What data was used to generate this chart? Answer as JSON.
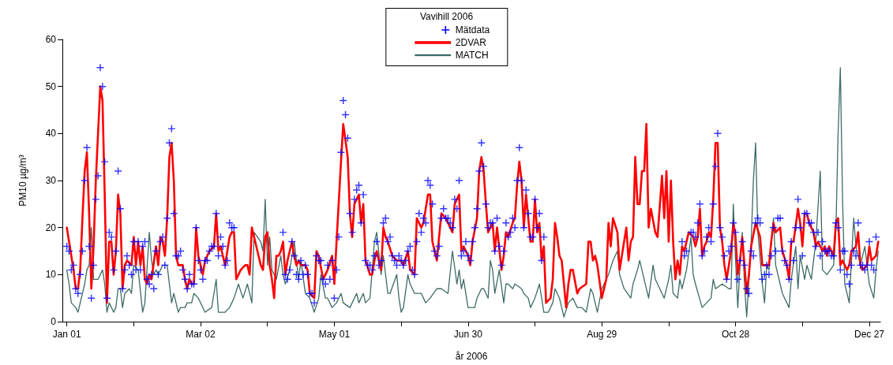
{
  "chart_data": {
    "type": "line",
    "legend_title": "Vavihill 2006",
    "xlabel": "år 2006",
    "ylabel": "PM10 µg/m³",
    "xlim": [
      "2005-12-30",
      "2007-01-01"
    ],
    "xticks": [
      {
        "value": "2006-01-01",
        "label": "Jan 01"
      },
      {
        "value": "2006-01-31",
        "label": null
      },
      {
        "value": "2006-03-02",
        "label": "Mar 02"
      },
      {
        "value": "2006-04-01",
        "label": null
      },
      {
        "value": "2006-05-01",
        "label": "May 01"
      },
      {
        "value": "2006-05-31",
        "label": null
      },
      {
        "value": "2006-06-30",
        "label": "Jun 30"
      },
      {
        "value": "2006-07-30",
        "label": null
      },
      {
        "value": "2006-08-29",
        "label": "Aug 29"
      },
      {
        "value": "2006-09-28",
        "label": null
      },
      {
        "value": "2006-10-28",
        "label": "Oct 28"
      },
      {
        "value": "2006-11-27",
        "label": null
      },
      {
        "value": "2006-12-27",
        "label": "Dec 27"
      }
    ],
    "ylim": [
      0,
      60
    ],
    "yticks": [
      0,
      10,
      20,
      30,
      40,
      50,
      60
    ],
    "grid": false,
    "legend": "top",
    "series": [
      {
        "name": "Mätdata",
        "type": "scatter",
        "marker": "cross",
        "color": "#0000ff",
        "x": [
          "2006-01-01",
          "2006-01-02",
          "2006-01-03",
          "2006-01-04",
          "2006-01-05",
          "2006-01-06",
          "2006-01-07",
          "2006-01-08",
          "2006-01-09",
          "2006-01-10",
          "2006-01-11",
          "2006-01-12",
          "2006-01-13",
          "2006-01-14",
          "2006-01-15",
          "2006-01-16",
          "2006-01-17",
          "2006-01-18",
          "2006-01-19",
          "2006-01-20",
          "2006-01-21",
          "2006-01-22",
          "2006-01-23",
          "2006-01-24",
          "2006-01-25",
          "2006-01-26",
          "2006-01-27",
          "2006-01-28",
          "2006-01-29",
          "2006-01-30",
          "2006-01-31",
          "2006-02-01",
          "2006-02-02",
          "2006-02-03",
          "2006-02-04",
          "2006-02-05",
          "2006-02-06",
          "2006-02-07",
          "2006-02-08",
          "2006-02-09",
          "2006-02-10",
          "2006-02-11",
          "2006-02-12",
          "2006-02-13",
          "2006-02-14",
          "2006-02-15",
          "2006-02-16",
          "2006-02-17",
          "2006-02-18",
          "2006-02-19",
          "2006-02-20",
          "2006-02-21",
          "2006-02-22",
          "2006-02-23",
          "2006-02-24",
          "2006-02-25",
          "2006-02-26",
          "2006-02-27",
          "2006-02-28",
          "2006-03-01",
          "2006-03-02",
          "2006-03-03",
          "2006-03-04",
          "2006-03-05",
          "2006-03-06",
          "2006-03-07",
          "2006-03-08",
          "2006-03-09",
          "2006-03-10",
          "2006-03-11",
          "2006-03-12",
          "2006-03-13",
          "2006-03-14",
          "2006-03-15",
          "2006-03-16",
          "2006-03-17",
          "2006-04-08",
          "2006-04-09",
          "2006-04-10",
          "2006-04-11",
          "2006-04-12",
          "2006-04-13",
          "2006-04-14",
          "2006-04-15",
          "2006-04-16",
          "2006-04-17",
          "2006-04-18",
          "2006-04-19",
          "2006-04-20",
          "2006-04-21",
          "2006-04-22",
          "2006-04-23",
          "2006-04-24",
          "2006-04-25",
          "2006-04-26",
          "2006-04-27",
          "2006-04-28",
          "2006-04-29",
          "2006-04-30",
          "2006-05-01",
          "2006-05-02",
          "2006-05-03",
          "2006-05-04",
          "2006-05-05",
          "2006-05-06",
          "2006-05-07",
          "2006-05-08",
          "2006-05-09",
          "2006-05-10",
          "2006-05-11",
          "2006-05-12",
          "2006-05-13",
          "2006-05-14",
          "2006-05-15",
          "2006-05-16",
          "2006-05-17",
          "2006-05-18",
          "2006-05-19",
          "2006-05-20",
          "2006-05-21",
          "2006-05-22",
          "2006-05-23",
          "2006-05-24",
          "2006-05-25",
          "2006-05-26",
          "2006-05-27",
          "2006-05-28",
          "2006-05-29",
          "2006-05-30",
          "2006-05-31",
          "2006-06-01",
          "2006-06-02",
          "2006-06-03",
          "2006-06-04",
          "2006-06-05",
          "2006-06-06",
          "2006-06-07",
          "2006-06-08",
          "2006-06-09",
          "2006-06-10",
          "2006-06-11",
          "2006-06-12",
          "2006-06-13",
          "2006-06-14",
          "2006-06-15",
          "2006-06-16",
          "2006-06-17",
          "2006-06-18",
          "2006-06-19",
          "2006-06-20",
          "2006-06-21",
          "2006-06-22",
          "2006-06-23",
          "2006-06-24",
          "2006-06-25",
          "2006-06-26",
          "2006-06-27",
          "2006-06-28",
          "2006-06-29",
          "2006-06-30",
          "2006-07-01",
          "2006-07-02",
          "2006-07-03",
          "2006-07-04",
          "2006-07-05",
          "2006-07-06",
          "2006-07-07",
          "2006-07-08",
          "2006-07-09",
          "2006-07-10",
          "2006-07-11",
          "2006-07-12",
          "2006-07-13",
          "2006-07-14",
          "2006-07-15",
          "2006-07-16",
          "2006-07-17",
          "2006-07-18",
          "2006-07-19",
          "2006-07-20",
          "2006-07-21",
          "2006-07-22",
          "2006-07-23",
          "2006-07-24",
          "2006-07-25",
          "2006-07-26",
          "2006-07-27",
          "2006-07-28",
          "2006-07-29",
          "2006-07-30",
          "2006-07-31",
          "2006-08-01",
          "2006-08-02",
          "2006-08-03",
          "2006-10-04",
          "2006-10-05",
          "2006-10-06",
          "2006-10-08",
          "2006-10-09",
          "2006-10-10",
          "2006-10-11",
          "2006-10-12",
          "2006-10-13",
          "2006-10-14",
          "2006-10-15",
          "2006-10-16",
          "2006-10-17",
          "2006-10-18",
          "2006-10-19",
          "2006-10-20",
          "2006-10-21",
          "2006-10-22",
          "2006-10-23",
          "2006-10-24",
          "2006-10-25",
          "2006-10-26",
          "2006-10-27",
          "2006-10-28",
          "2006-10-29",
          "2006-10-30",
          "2006-10-31",
          "2006-11-01",
          "2006-11-02",
          "2006-11-03",
          "2006-11-04",
          "2006-11-05",
          "2006-11-06",
          "2006-11-07",
          "2006-11-08",
          "2006-11-09",
          "2006-11-10",
          "2006-11-11",
          "2006-11-12",
          "2006-11-13",
          "2006-11-14",
          "2006-11-15",
          "2006-11-16",
          "2006-11-17",
          "2006-11-18",
          "2006-11-19",
          "2006-11-20",
          "2006-11-21",
          "2006-11-22",
          "2006-11-23",
          "2006-11-24",
          "2006-11-25",
          "2006-11-26",
          "2006-11-27",
          "2006-11-28",
          "2006-11-29",
          "2006-11-30",
          "2006-12-01",
          "2006-12-02",
          "2006-12-03",
          "2006-12-04",
          "2006-12-05",
          "2006-12-06",
          "2006-12-07",
          "2006-12-08",
          "2006-12-09",
          "2006-12-10",
          "2006-12-11",
          "2006-12-12",
          "2006-12-13",
          "2006-12-14",
          "2006-12-15",
          "2006-12-16",
          "2006-12-17",
          "2006-12-18",
          "2006-12-19",
          "2006-12-20",
          "2006-12-21",
          "2006-12-22",
          "2006-12-23",
          "2006-12-24",
          "2006-12-25",
          "2006-12-26",
          "2006-12-27",
          "2006-12-28",
          "2006-12-29",
          "2006-12-30"
        ],
        "values": [
          16,
          15,
          11,
          12,
          7,
          6,
          10,
          15,
          30,
          37,
          16,
          5,
          12,
          26,
          31,
          54,
          50,
          34,
          5,
          19,
          18,
          11,
          15,
          32,
          24,
          7,
          11,
          14,
          12,
          10,
          17,
          11,
          17,
          11,
          16,
          17,
          9,
          8,
          10,
          7,
          15,
          10,
          17,
          18,
          12,
          22,
          38,
          41,
          23,
          14,
          14,
          15,
          11,
          9,
          7,
          10,
          8,
          8,
          20,
          13,
          11,
          9,
          13,
          13,
          15,
          16,
          16,
          23,
          14,
          18,
          16,
          12,
          13,
          21,
          20,
          20,
          19,
          10,
          9,
          11,
          17,
          14,
          10,
          9,
          13,
          10,
          12,
          10,
          6,
          6,
          4,
          14,
          13,
          13,
          9,
          8,
          12,
          9,
          13,
          5,
          11,
          18,
          36,
          47,
          44,
          39,
          23,
          19,
          26,
          28,
          29,
          21,
          27,
          13,
          12,
          12,
          11,
          14,
          17,
          12,
          13,
          21,
          22,
          17,
          18,
          14,
          13,
          12,
          14,
          13,
          12,
          13,
          15,
          16,
          11,
          10,
          17,
          23,
          19,
          22,
          21,
          30,
          29,
          25,
          15,
          14,
          16,
          22,
          24,
          22,
          22,
          21,
          20,
          26,
          24,
          30,
          14,
          15,
          17,
          14,
          13,
          17,
          20,
          24,
          32,
          38,
          33,
          25,
          20,
          21,
          21,
          15,
          22,
          16,
          12,
          15,
          21,
          18,
          19,
          22,
          20,
          30,
          37,
          30,
          20,
          28,
          23,
          18,
          18,
          26,
          20,
          23,
          13,
          18,
          17,
          14,
          15,
          19,
          19,
          18,
          21,
          25,
          14,
          15,
          18,
          20,
          17,
          25,
          33,
          40,
          20,
          18,
          14,
          9,
          15,
          16,
          21,
          19,
          9,
          13,
          17,
          12,
          7,
          6,
          15,
          14,
          21,
          22,
          21,
          9,
          10,
          12,
          10,
          14,
          20,
          15,
          22,
          22,
          15,
          13,
          12,
          9,
          17,
          13,
          20,
          26,
          20,
          14,
          23,
          23,
          21,
          21,
          19,
          16,
          19,
          14,
          17,
          15,
          15,
          15,
          14,
          14,
          21,
          20,
          11,
          15,
          15,
          10,
          8,
          12,
          15,
          14,
          21,
          12,
          12,
          11,
          12,
          17,
          12,
          11,
          18
        ]
      },
      {
        "name": "2DVAR",
        "marker": "none",
        "line_style": "solid",
        "color": "#ff0000",
        "x": [
          "2006-01-01",
          "2006-01-02",
          "2006-01-04",
          "2006-01-05",
          "2006-01-06",
          "2006-01-07",
          "2006-01-08",
          "2006-01-09",
          "2006-01-10",
          "2006-01-11",
          "2006-01-12",
          "2006-01-13",
          "2006-01-14",
          "2006-01-16",
          "2006-01-17",
          "2006-01-18",
          "2006-01-19",
          "2006-01-20",
          "2006-01-21",
          "2006-01-22",
          "2006-01-23",
          "2006-01-24",
          "2006-01-25",
          "2006-01-26",
          "2006-01-27",
          "2006-01-28",
          "2006-01-30",
          "2006-01-31",
          "2006-02-01",
          "2006-02-02",
          "2006-02-03",
          "2006-02-04",
          "2006-02-05",
          "2006-02-06",
          "2006-02-07",
          "2006-02-08",
          "2006-02-10",
          "2006-02-11",
          "2006-02-12",
          "2006-02-13",
          "2006-02-14",
          "2006-02-15",
          "2006-02-16",
          "2006-02-17",
          "2006-02-18",
          "2006-02-19",
          "2006-02-20",
          "2006-02-22",
          "2006-02-23",
          "2006-02-24",
          "2006-02-25",
          "2006-02-26",
          "2006-02-27",
          "2006-02-28",
          "2006-03-01",
          "2006-03-03",
          "2006-03-04",
          "2006-03-06",
          "2006-03-08",
          "2006-03-09",
          "2006-03-10",
          "2006-03-11",
          "2006-03-12",
          "2006-03-13",
          "2006-03-15",
          "2006-03-16",
          "2006-03-17",
          "2006-03-18",
          "2006-03-19",
          "2006-03-20",
          "2006-03-22",
          "2006-03-23",
          "2006-03-24",
          "2006-03-25",
          "2006-03-27",
          "2006-03-29",
          "2006-03-30",
          "2006-03-31",
          "2006-04-01",
          "2006-04-02",
          "2006-04-03",
          "2006-04-04",
          "2006-04-05",
          "2006-04-06",
          "2006-04-07",
          "2006-04-08",
          "2006-04-09",
          "2006-04-10",
          "2006-04-12",
          "2006-04-13",
          "2006-04-14",
          "2006-04-15",
          "2006-04-16",
          "2006-04-18",
          "2006-04-19",
          "2006-04-20",
          "2006-04-22",
          "2006-04-23",
          "2006-04-24",
          "2006-04-26",
          "2006-04-27",
          "2006-04-28",
          "2006-04-30",
          "2006-05-01",
          "2006-05-02",
          "2006-05-04",
          "2006-05-05",
          "2006-05-07",
          "2006-05-08",
          "2006-05-09",
          "2006-05-10",
          "2006-05-11",
          "2006-05-12",
          "2006-05-13",
          "2006-05-14",
          "2006-05-15",
          "2006-05-17",
          "2006-05-18",
          "2006-05-19",
          "2006-05-20",
          "2006-05-22",
          "2006-05-23",
          "2006-05-24",
          "2006-05-25",
          "2006-05-27",
          "2006-05-29",
          "2006-05-31",
          "2006-06-01",
          "2006-06-03",
          "2006-06-04",
          "2006-06-06",
          "2006-06-07",
          "2006-06-09",
          "2006-06-10",
          "2006-06-12",
          "2006-06-13",
          "2006-06-14",
          "2006-06-16",
          "2006-06-17",
          "2006-06-18",
          "2006-06-20",
          "2006-06-21",
          "2006-06-23",
          "2006-06-24",
          "2006-06-26",
          "2006-06-27",
          "2006-06-28",
          "2006-06-30",
          "2006-07-01",
          "2006-07-02",
          "2006-07-04",
          "2006-07-05",
          "2006-07-06",
          "2006-07-07",
          "2006-07-08",
          "2006-07-09",
          "2006-07-11",
          "2006-07-12",
          "2006-07-13",
          "2006-07-15",
          "2006-07-16",
          "2006-07-17",
          "2006-07-18",
          "2006-07-20",
          "2006-07-21",
          "2006-07-22",
          "2006-07-23",
          "2006-07-24",
          "2006-07-25",
          "2006-07-26",
          "2006-07-27",
          "2006-07-28",
          "2006-07-29",
          "2006-07-30",
          "2006-07-31",
          "2006-08-01",
          "2006-08-02",
          "2006-08-03",
          "2006-08-04",
          "2006-08-06",
          "2006-08-07",
          "2006-08-08",
          "2006-08-09",
          "2006-08-10",
          "2006-08-11",
          "2006-08-13",
          "2006-08-14",
          "2006-08-15",
          "2006-08-16",
          "2006-08-18",
          "2006-08-19",
          "2006-08-22",
          "2006-08-23",
          "2006-08-24",
          "2006-08-25",
          "2006-08-26",
          "2006-08-27",
          "2006-08-29",
          "2006-08-31",
          "2006-09-01",
          "2006-09-02",
          "2006-09-03",
          "2006-09-05",
          "2006-09-06",
          "2006-09-08",
          "2006-09-09",
          "2006-09-10",
          "2006-09-11",
          "2006-09-12",
          "2006-09-13",
          "2006-09-14",
          "2006-09-15",
          "2006-09-16",
          "2006-09-17",
          "2006-09-18",
          "2006-09-19",
          "2006-09-20",
          "2006-09-22",
          "2006-09-23",
          "2006-09-25",
          "2006-09-26",
          "2006-09-27",
          "2006-09-28",
          "2006-09-29",
          "2006-09-30",
          "2006-10-01",
          "2006-10-02",
          "2006-10-03",
          "2006-10-04",
          "2006-10-05",
          "2006-10-07",
          "2006-10-09",
          "2006-10-10",
          "2006-10-11",
          "2006-10-12",
          "2006-10-13",
          "2006-10-14",
          "2006-10-15",
          "2006-10-16",
          "2006-10-17",
          "2006-10-18",
          "2006-10-19",
          "2006-10-20",
          "2006-10-21",
          "2006-10-22",
          "2006-10-23",
          "2006-10-24",
          "2006-10-26",
          "2006-10-27",
          "2006-10-28",
          "2006-10-29",
          "2006-10-30",
          "2006-10-31",
          "2006-11-01",
          "2006-11-02",
          "2006-11-03",
          "2006-11-04",
          "2006-11-06",
          "2006-11-08",
          "2006-11-09",
          "2006-11-10",
          "2006-11-12",
          "2006-11-13",
          "2006-11-14",
          "2006-11-15",
          "2006-11-17",
          "2006-11-18",
          "2006-11-20",
          "2006-11-21",
          "2006-11-22",
          "2006-11-23",
          "2006-11-25",
          "2006-11-26",
          "2006-11-27",
          "2006-11-28",
          "2006-11-29",
          "2006-11-30",
          "2006-12-02",
          "2006-12-03",
          "2006-12-04",
          "2006-12-06",
          "2006-12-07",
          "2006-12-08",
          "2006-12-09",
          "2006-12-11",
          "2006-12-12",
          "2006-12-13",
          "2006-12-14",
          "2006-12-15",
          "2006-12-17",
          "2006-12-18",
          "2006-12-19",
          "2006-12-21",
          "2006-12-22",
          "2006-12-23",
          "2006-12-24",
          "2006-12-26",
          "2006-12-27",
          "2006-12-28",
          "2006-12-30",
          "2006-12-31"
        ],
        "values": [
          20,
          17,
          11,
          7,
          7,
          11,
          22,
          32,
          36,
          23,
          7,
          16,
          30,
          50,
          47,
          27,
          4,
          17,
          17,
          10,
          15,
          27,
          23,
          7,
          12,
          13,
          12,
          18,
          12,
          17,
          12,
          16,
          9,
          8,
          10,
          9,
          16,
          12,
          18,
          17,
          14,
          22,
          35,
          38,
          30,
          14,
          12,
          12,
          9,
          7,
          9,
          8,
          8,
          20,
          14,
          10,
          13,
          15,
          16,
          23,
          15,
          16,
          14,
          12,
          18,
          19,
          19,
          9,
          10,
          11,
          12,
          12,
          10,
          20,
          16,
          12,
          11,
          18,
          19,
          12,
          9,
          5,
          14,
          14,
          15,
          17,
          10,
          13,
          17,
          14,
          12,
          13,
          12,
          12,
          11,
          6,
          5,
          15,
          14,
          9,
          10,
          11,
          14,
          8,
          17,
          34,
          42,
          35,
          23,
          18,
          25,
          26,
          27,
          21,
          25,
          13,
          10,
          10,
          13,
          15,
          11,
          20,
          18,
          17,
          14,
          13,
          13,
          12,
          15,
          11,
          10,
          22,
          20,
          21,
          27,
          27,
          17,
          13,
          18,
          23,
          22,
          21,
          19,
          25,
          27,
          15,
          16,
          14,
          12,
          17,
          22,
          32,
          35,
          32,
          25,
          19,
          21,
          15,
          20,
          11,
          14,
          19,
          18,
          21,
          22,
          29,
          34,
          30,
          20,
          27,
          22,
          17,
          17,
          26,
          19,
          21,
          13,
          16,
          4,
          5,
          9,
          21,
          18,
          14,
          13,
          3,
          8,
          11,
          11,
          6,
          7,
          8,
          17,
          17,
          13,
          14,
          12,
          5,
          9,
          21,
          16,
          22,
          19,
          11,
          17,
          20,
          13,
          17,
          18,
          35,
          25,
          25,
          32,
          32,
          42,
          20,
          24,
          19,
          18,
          31,
          22,
          32,
          17,
          30,
          17,
          9,
          13,
          10,
          16,
          15,
          19,
          18,
          16,
          18,
          24,
          14,
          16,
          17,
          19,
          18,
          26,
          38,
          38,
          20,
          17,
          12,
          9,
          15,
          21,
          18,
          10,
          13,
          18,
          12,
          6,
          10,
          16,
          21,
          18,
          12,
          12,
          12,
          17,
          21,
          19,
          20,
          15,
          12,
          9,
          17,
          17,
          24,
          21,
          16,
          23,
          23,
          21,
          19,
          16,
          17,
          15,
          16,
          14,
          16,
          14,
          21,
          22,
          12,
          13,
          11,
          12,
          15,
          16,
          19,
          12,
          11,
          12,
          16,
          13,
          14,
          17
        ]
      },
      {
        "name": "MATCH",
        "marker": "none",
        "line_style": "solid",
        "color": "#3d6b66",
        "x": [
          "2006-01-01",
          "2006-01-02",
          "2006-01-03",
          "2006-01-05",
          "2006-01-06",
          "2006-01-07",
          "2006-01-09",
          "2006-01-10",
          "2006-01-11",
          "2006-01-12",
          "2006-01-13",
          "2006-01-14",
          "2006-01-15",
          "2006-01-17",
          "2006-01-18",
          "2006-01-19",
          "2006-01-20",
          "2006-01-22",
          "2006-01-23",
          "2006-01-24",
          "2006-01-25",
          "2006-01-26",
          "2006-01-27",
          "2006-01-29",
          "2006-01-30",
          "2006-01-31",
          "2006-02-02",
          "2006-02-04",
          "2006-02-05",
          "2006-02-07",
          "2006-02-08",
          "2006-02-09",
          "2006-02-10",
          "2006-02-11",
          "2006-02-13",
          "2006-02-15",
          "2006-02-17",
          "2006-02-18",
          "2006-02-20",
          "2006-02-21",
          "2006-02-23",
          "2006-02-24",
          "2006-02-26",
          "2006-02-27",
          "2006-03-01",
          "2006-03-04",
          "2006-03-07",
          "2006-03-09",
          "2006-03-10",
          "2006-03-12",
          "2006-03-13",
          "2006-03-15",
          "2006-03-17",
          "2006-03-19",
          "2006-03-21",
          "2006-03-23",
          "2006-03-25",
          "2006-03-26",
          "2006-03-29",
          "2006-03-30",
          "2006-03-31",
          "2006-04-01",
          "2006-04-02",
          "2006-04-03",
          "2006-04-05",
          "2006-04-07",
          "2006-04-08",
          "2006-04-09",
          "2006-04-11",
          "2006-04-13",
          "2006-04-15",
          "2006-04-16",
          "2006-04-18",
          "2006-04-20",
          "2006-04-22",
          "2006-04-24",
          "2006-04-25",
          "2006-04-27",
          "2006-04-28",
          "2006-04-30",
          "2006-05-02",
          "2006-05-04",
          "2006-05-05",
          "2006-05-08",
          "2006-05-11",
          "2006-05-12",
          "2006-05-14",
          "2006-05-15",
          "2006-05-17",
          "2006-05-19",
          "2006-05-20",
          "2006-05-22",
          "2006-05-23",
          "2006-05-25",
          "2006-05-26",
          "2006-05-29",
          "2006-05-30",
          "2006-05-31",
          "2006-06-01",
          "2006-06-03",
          "2006-06-04",
          "2006-06-06",
          "2006-06-09",
          "2006-06-11",
          "2006-06-13",
          "2006-06-16",
          "2006-06-18",
          "2006-06-21",
          "2006-06-23",
          "2006-06-25",
          "2006-06-26",
          "2006-06-27",
          "2006-06-28",
          "2006-06-29",
          "2006-06-30",
          "2006-07-03",
          "2006-07-04",
          "2006-07-06",
          "2006-07-07",
          "2006-07-09",
          "2006-07-10",
          "2006-07-11",
          "2006-07-12",
          "2006-07-14",
          "2006-07-16",
          "2006-07-17",
          "2006-07-18",
          "2006-07-20",
          "2006-07-21",
          "2006-07-24",
          "2006-07-25",
          "2006-07-27",
          "2006-07-28",
          "2006-07-30",
          "2006-08-01",
          "2006-08-03",
          "2006-08-05",
          "2006-08-07",
          "2006-08-08",
          "2006-08-10",
          "2006-08-12",
          "2006-08-14",
          "2006-08-16",
          "2006-08-18",
          "2006-08-20",
          "2006-08-22",
          "2006-08-24",
          "2006-08-25",
          "2006-08-27",
          "2006-08-29",
          "2006-09-01",
          "2006-09-03",
          "2006-09-05",
          "2006-09-06",
          "2006-09-08",
          "2006-09-11",
          "2006-09-12",
          "2006-09-14",
          "2006-09-15",
          "2006-09-17",
          "2006-09-19",
          "2006-09-21",
          "2006-09-22",
          "2006-09-23",
          "2006-09-25",
          "2006-09-26",
          "2006-09-28",
          "2006-09-29",
          "2006-09-30",
          "2006-10-02",
          "2006-10-03",
          "2006-10-04",
          "2006-10-06",
          "2006-10-08",
          "2006-10-09",
          "2006-10-10",
          "2006-10-13",
          "2006-10-15",
          "2006-10-17",
          "2006-10-18",
          "2006-10-19",
          "2006-10-22",
          "2006-10-25",
          "2006-10-26",
          "2006-10-27",
          "2006-10-28",
          "2006-10-29",
          "2006-10-30",
          "2006-10-31",
          "2006-11-01",
          "2006-11-02",
          "2006-11-04",
          "2006-11-05",
          "2006-11-06",
          "2006-11-07",
          "2006-11-09",
          "2006-11-10",
          "2006-11-11",
          "2006-11-12",
          "2006-11-14",
          "2006-11-15",
          "2006-11-17",
          "2006-11-18",
          "2006-11-20",
          "2006-11-21",
          "2006-11-22",
          "2006-11-24",
          "2006-11-25",
          "2006-11-26",
          "2006-11-28",
          "2006-11-29",
          "2006-12-01",
          "2006-12-03",
          "2006-12-05",
          "2006-12-06",
          "2006-12-08",
          "2006-12-11",
          "2006-12-12",
          "2006-12-13",
          "2006-12-14",
          "2006-12-15",
          "2006-12-16",
          "2006-12-18",
          "2006-12-19",
          "2006-12-20",
          "2006-12-21",
          "2006-12-23",
          "2006-12-25",
          "2006-12-27",
          "2006-12-29",
          "2006-12-30",
          "2006-12-31"
        ],
        "values": [
          11,
          8,
          4,
          3,
          2,
          4,
          8,
          11,
          12,
          20,
          9,
          9,
          9,
          11,
          8,
          2,
          4,
          2,
          3,
          7,
          7,
          3,
          6,
          7,
          6,
          12,
          11,
          2,
          4,
          19,
          13,
          10,
          11,
          10,
          12,
          12,
          4,
          6,
          2,
          3,
          3,
          4,
          4,
          6,
          5,
          2,
          3,
          9,
          2,
          2,
          2,
          3,
          5,
          8,
          5,
          8,
          4,
          19,
          17,
          15,
          26,
          12,
          18,
          11,
          9,
          14,
          10,
          8,
          11,
          17,
          9,
          13,
          6,
          5,
          2,
          5,
          10,
          5,
          5,
          3,
          4,
          6,
          4,
          3,
          6,
          4,
          6,
          4,
          5,
          17,
          19,
          10,
          14,
          6,
          6,
          10,
          5,
          2,
          3,
          10,
          8,
          6,
          6,
          4,
          5,
          7,
          7,
          6,
          15,
          8,
          11,
          7,
          9,
          6,
          3,
          3,
          5,
          7,
          7,
          5,
          13,
          11,
          6,
          11,
          4,
          8,
          8,
          7,
          8,
          7,
          6,
          5,
          3,
          5,
          8,
          2,
          2,
          4,
          7,
          5,
          1,
          4,
          5,
          3,
          3,
          2,
          7,
          6,
          2,
          7,
          10,
          13,
          15,
          10,
          7,
          5,
          8,
          11,
          13,
          9,
          5,
          12,
          9,
          8,
          6,
          5,
          9,
          12,
          6,
          5,
          9,
          7,
          11,
          18,
          10,
          8,
          3,
          4,
          5,
          9,
          7,
          8,
          7,
          7,
          25,
          13,
          3,
          12,
          19,
          8,
          1,
          17,
          30,
          38,
          19,
          8,
          4,
          12,
          11,
          22,
          12,
          8,
          6,
          4,
          3,
          9,
          16,
          7,
          14,
          9,
          12,
          9,
          17,
          32,
          11,
          10,
          12,
          19,
          40,
          54,
          26,
          8,
          4,
          13,
          22,
          16,
          12,
          16,
          8,
          5,
          11,
          15
        ]
      }
    ]
  }
}
